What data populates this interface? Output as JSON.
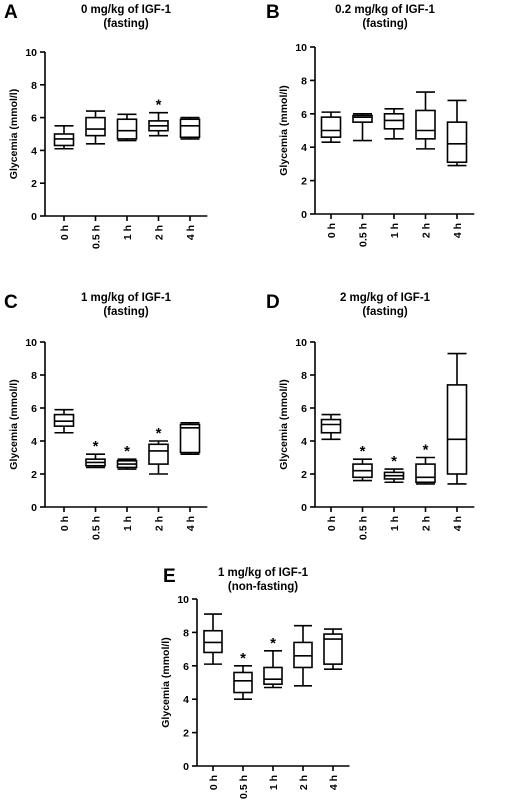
{
  "chart_data": [
    {
      "type": "box",
      "panel_letter": "A",
      "title_line1": "0 mg/kg of IGF-1",
      "title_line2": "(fasting)",
      "ylabel": "Glycemia (mmol/l)",
      "ylim": [
        0,
        10
      ],
      "yticks": [
        "0",
        "2",
        "4",
        "6",
        "8",
        "10"
      ],
      "categories": [
        "0 h",
        "0.5 h",
        "1 h",
        "2 h",
        "4 h"
      ],
      "boxes": [
        {
          "min": 4.1,
          "q1": 4.3,
          "median": 4.7,
          "q3": 5.0,
          "max": 5.5,
          "significant": false
        },
        {
          "min": 4.4,
          "q1": 4.9,
          "median": 5.3,
          "q3": 6.0,
          "max": 6.4,
          "significant": false
        },
        {
          "min": 4.6,
          "q1": 4.7,
          "median": 5.2,
          "q3": 5.9,
          "max": 6.2,
          "significant": false
        },
        {
          "min": 4.9,
          "q1": 5.2,
          "median": 5.5,
          "q3": 5.8,
          "max": 6.3,
          "significant": true
        },
        {
          "min": 4.7,
          "q1": 4.8,
          "median": 5.5,
          "q3": 5.9,
          "max": 6.0,
          "significant": false
        }
      ],
      "significance_mark": "*"
    },
    {
      "type": "box",
      "panel_letter": "B",
      "title_line1": "0.2 mg/kg of IGF-1",
      "title_line2": "(fasting)",
      "ylabel": "Glycemia (mmol/l)",
      "ylim": [
        0,
        10
      ],
      "yticks": [
        "0",
        "2",
        "4",
        "6",
        "8",
        "10"
      ],
      "categories": [
        "0 h",
        "0.5 h",
        "1 h",
        "2 h",
        "4 h"
      ],
      "boxes": [
        {
          "min": 4.3,
          "q1": 4.6,
          "median": 5.0,
          "q3": 5.8,
          "max": 6.1,
          "significant": false
        },
        {
          "min": 4.4,
          "q1": 5.5,
          "median": 5.8,
          "q3": 5.9,
          "max": 6.0,
          "significant": false
        },
        {
          "min": 4.5,
          "q1": 5.1,
          "median": 5.6,
          "q3": 6.0,
          "max": 6.3,
          "significant": false
        },
        {
          "min": 3.9,
          "q1": 4.5,
          "median": 5.0,
          "q3": 6.2,
          "max": 7.3,
          "significant": false
        },
        {
          "min": 2.9,
          "q1": 3.1,
          "median": 4.2,
          "q3": 5.5,
          "max": 6.8,
          "significant": false
        }
      ],
      "significance_mark": "*"
    },
    {
      "type": "box",
      "panel_letter": "C",
      "title_line1": "1 mg/kg of IGF-1",
      "title_line2": "(fasting)",
      "ylabel": "Glycemia (mmol/l)",
      "ylim": [
        0,
        10
      ],
      "yticks": [
        "0",
        "2",
        "4",
        "6",
        "8",
        "10"
      ],
      "categories": [
        "0 h",
        "0.5 h",
        "1 h",
        "2 h",
        "4 h"
      ],
      "boxes": [
        {
          "min": 4.5,
          "q1": 4.9,
          "median": 5.2,
          "q3": 5.6,
          "max": 5.9,
          "significant": false
        },
        {
          "min": 2.4,
          "q1": 2.5,
          "median": 2.7,
          "q3": 2.9,
          "max": 3.2,
          "significant": true
        },
        {
          "min": 2.3,
          "q1": 2.4,
          "median": 2.6,
          "q3": 2.8,
          "max": 2.9,
          "significant": true
        },
        {
          "min": 2.0,
          "q1": 2.6,
          "median": 3.4,
          "q3": 3.8,
          "max": 4.0,
          "significant": true
        },
        {
          "min": 3.2,
          "q1": 3.3,
          "median": 4.8,
          "q3": 5.0,
          "max": 5.1,
          "significant": false
        }
      ],
      "significance_mark": "*"
    },
    {
      "type": "box",
      "panel_letter": "D",
      "title_line1": "2 mg/kg of IGF-1",
      "title_line2": "(fasting)",
      "ylabel": "Glycemia (mmol/l)",
      "ylim": [
        0,
        10
      ],
      "yticks": [
        "0",
        "2",
        "4",
        "6",
        "8",
        "10"
      ],
      "categories": [
        "0 h",
        "0.5 h",
        "1 h",
        "2 h",
        "4 h"
      ],
      "boxes": [
        {
          "min": 4.1,
          "q1": 4.5,
          "median": 5.0,
          "q3": 5.3,
          "max": 5.6,
          "significant": false
        },
        {
          "min": 1.6,
          "q1": 1.8,
          "median": 2.2,
          "q3": 2.6,
          "max": 2.9,
          "significant": true
        },
        {
          "min": 1.5,
          "q1": 1.7,
          "median": 1.9,
          "q3": 2.1,
          "max": 2.3,
          "significant": true
        },
        {
          "min": 1.4,
          "q1": 1.5,
          "median": 1.8,
          "q3": 2.6,
          "max": 3.0,
          "significant": true
        },
        {
          "min": 1.4,
          "q1": 2.0,
          "median": 4.1,
          "q3": 7.4,
          "max": 9.3,
          "significant": false
        }
      ],
      "significance_mark": "*"
    },
    {
      "type": "box",
      "panel_letter": "E",
      "title_line1": "1 mg/kg of IGF-1",
      "title_line2": "(non-fasting)",
      "ylabel": "Glycemia (mmol/l)",
      "ylim": [
        0,
        10
      ],
      "yticks": [
        "0",
        "2",
        "4",
        "6",
        "8",
        "10"
      ],
      "categories": [
        "0 h",
        "0.5 h",
        "1 h",
        "2 h",
        "4 h"
      ],
      "boxes": [
        {
          "min": 6.1,
          "q1": 6.8,
          "median": 7.4,
          "q3": 8.1,
          "max": 9.1,
          "significant": false
        },
        {
          "min": 4.0,
          "q1": 4.4,
          "median": 5.1,
          "q3": 5.6,
          "max": 6.0,
          "significant": true
        },
        {
          "min": 4.7,
          "q1": 4.9,
          "median": 5.2,
          "q3": 5.9,
          "max": 6.9,
          "significant": true
        },
        {
          "min": 4.8,
          "q1": 5.9,
          "median": 6.6,
          "q3": 7.4,
          "max": 8.4,
          "significant": false
        },
        {
          "min": 5.8,
          "q1": 6.1,
          "median": 7.6,
          "q3": 7.9,
          "max": 8.2,
          "significant": false
        }
      ],
      "significance_mark": "*"
    }
  ]
}
